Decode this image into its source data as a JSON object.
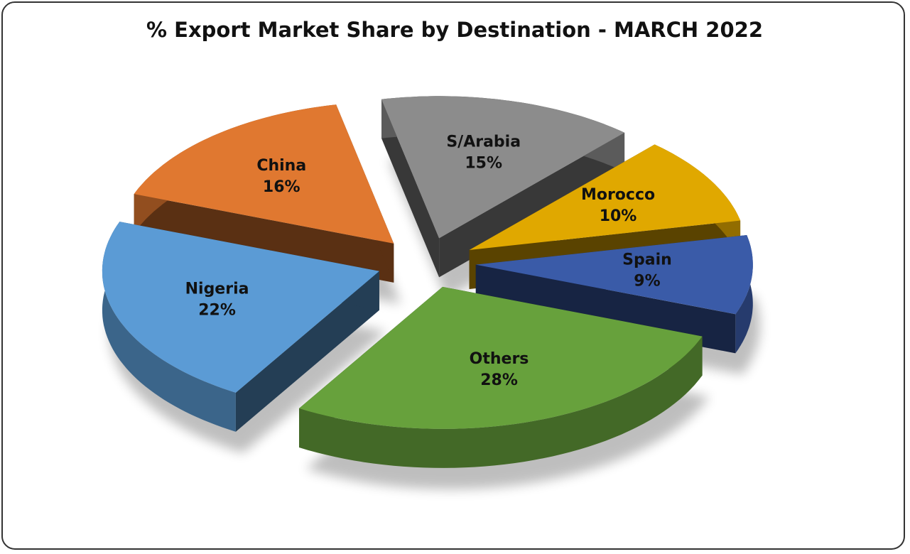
{
  "chart_data": {
    "type": "pie",
    "title": "% Export Market Share by Destination - MARCH 2022",
    "categories": [
      "S/Arabia",
      "Morocco",
      "Spain",
      "Others",
      "Nigeria",
      "China"
    ],
    "values": [
      15,
      10,
      9,
      28,
      22,
      16
    ],
    "value_labels": [
      "15%",
      "10%",
      "9%",
      "28%",
      "22%",
      "16%"
    ],
    "colors": [
      "#8c8c8c",
      "#e0a800",
      "#3a5ba8",
      "#67a13c",
      "#5b9bd5",
      "#e07830"
    ]
  }
}
